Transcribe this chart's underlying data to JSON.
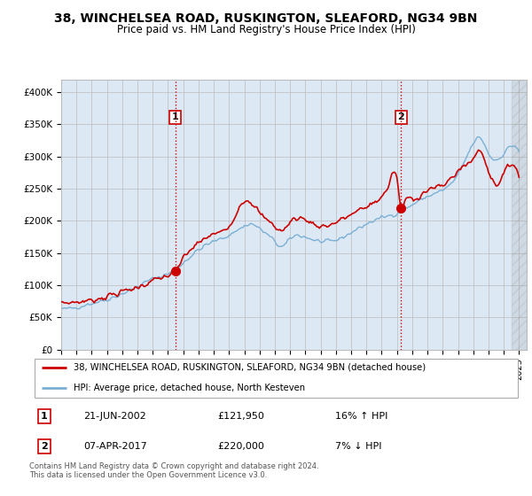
{
  "title": "38, WINCHELSEA ROAD, RUSKINGTON, SLEAFORD, NG34 9BN",
  "subtitle": "Price paid vs. HM Land Registry's House Price Index (HPI)",
  "legend_line1": "38, WINCHELSEA ROAD, RUSKINGTON, SLEAFORD, NG34 9BN (detached house)",
  "legend_line2": "HPI: Average price, detached house, North Kesteven",
  "annotation1": {
    "num": "1",
    "date": "21-JUN-2002",
    "price": "£121,950",
    "hpi": "16% ↑ HPI"
  },
  "annotation2": {
    "num": "2",
    "date": "07-APR-2017",
    "price": "£220,000",
    "hpi": "7% ↓ HPI"
  },
  "footer": "Contains HM Land Registry data © Crown copyright and database right 2024.\nThis data is licensed under the Open Government Licence v3.0.",
  "ylim": [
    0,
    420000
  ],
  "yticks": [
    0,
    50000,
    100000,
    150000,
    200000,
    250000,
    300000,
    350000,
    400000
  ],
  "ytick_labels": [
    "£0",
    "£50K",
    "£100K",
    "£150K",
    "£200K",
    "£250K",
    "£300K",
    "£350K",
    "£400K"
  ],
  "red_color": "#cc0000",
  "blue_color": "#7bafd4",
  "bg_color": "#dce9f5",
  "vline_color": "#cc0000",
  "marker1_x": 2002.47,
  "marker1_y": 121950,
  "marker2_x": 2017.27,
  "marker2_y": 220000,
  "sale1_x": 2002.47,
  "sale2_x": 2017.27,
  "xlim_start": 1995.0,
  "xlim_end": 2025.5
}
